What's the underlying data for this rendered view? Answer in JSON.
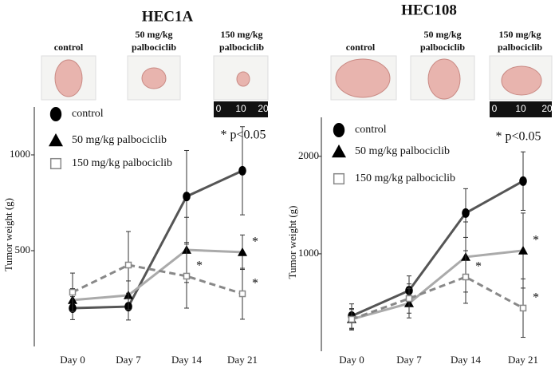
{
  "chart_data": [
    {
      "type": "line",
      "title": "HEC1A",
      "y_label": "Tumor weight (g)",
      "categories": [
        "Day 0",
        "Day 7",
        "Day 14",
        "Day 21"
      ],
      "ylim": [
        0,
        1250
      ],
      "yticks": [
        500,
        1000
      ],
      "significance_note": "* p<0.05",
      "photos": [
        {
          "label": [
            "control"
          ]
        },
        {
          "label": [
            "50 mg/kg",
            "palbociclib"
          ]
        },
        {
          "label": [
            "150 mg/kg",
            "palbociclib"
          ],
          "scale_ticks": [
            0,
            10,
            20
          ]
        }
      ],
      "series": [
        {
          "name": "control",
          "color": "#555555",
          "marker": "ellipse",
          "dashed": false,
          "values": [
            200,
            208,
            783,
            917
          ],
          "errors": [
            60,
            70,
            240,
            230
          ],
          "annotations": [
            null,
            null,
            null,
            null
          ]
        },
        {
          "name": "50 mg/kg palbociclib",
          "color": "#aaaaaa",
          "marker": "triangle",
          "dashed": false,
          "values": [
            242,
            267,
            504,
            492
          ],
          "errors": [
            60,
            75,
            170,
            90
          ],
          "annotations": [
            null,
            null,
            null,
            "*"
          ]
        },
        {
          "name": "150 mg/kg palbociclib",
          "color": "#888888",
          "marker": "square",
          "dashed": true,
          "values": [
            283,
            425,
            367,
            275
          ],
          "errors": [
            100,
            175,
            167,
            133
          ],
          "annotations": [
            null,
            null,
            "*",
            "*"
          ]
        }
      ]
    },
    {
      "type": "line",
      "title": "HEC108",
      "y_label": "Tumor weight (g)",
      "categories": [
        "Day 0",
        "Day 7",
        "Day 14",
        "Day 21"
      ],
      "ylim": [
        0,
        2400
      ],
      "yticks": [
        1000,
        2000
      ],
      "significance_note": "* p<0.05",
      "photos": [
        {
          "label": [
            "control"
          ]
        },
        {
          "label": [
            "50 mg/kg",
            "palbociclib"
          ]
        },
        {
          "label": [
            "150 mg/kg",
            "palbociclib"
          ],
          "scale_ticks": [
            0,
            10,
            20
          ]
        }
      ],
      "series": [
        {
          "name": "control",
          "color": "#555555",
          "marker": "ellipse",
          "dashed": false,
          "values": [
            361,
            623,
            1418,
            1746
          ],
          "errors": [
            125,
            150,
            250,
            300
          ],
          "annotations": [
            null,
            null,
            null,
            null
          ]
        },
        {
          "name": "50 mg/kg palbociclib",
          "color": "#aaaaaa",
          "marker": "triangle",
          "dashed": false,
          "values": [
            328,
            492,
            967,
            1033
          ],
          "errors": [
            110,
            150,
            360,
            385
          ],
          "annotations": [
            null,
            null,
            null,
            "*"
          ]
        },
        {
          "name": "150 mg/kg palbociclib",
          "color": "#888888",
          "marker": "square",
          "dashed": true,
          "values": [
            328,
            541,
            762,
            443
          ],
          "errors": [
            100,
            150,
            270,
            300
          ],
          "annotations": [
            null,
            null,
            "*",
            "*"
          ]
        }
      ]
    }
  ]
}
